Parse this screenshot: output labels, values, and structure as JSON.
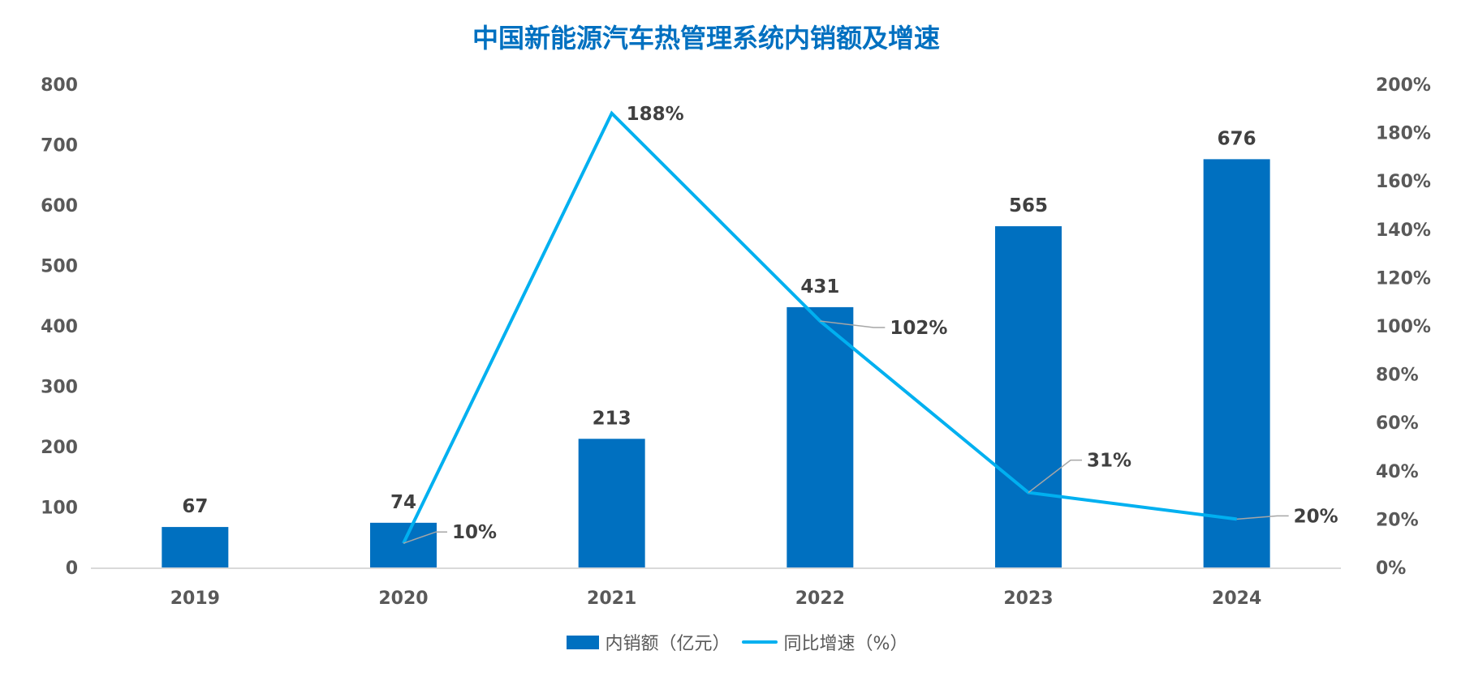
{
  "chart_data": {
    "type": "bar",
    "title": "中国新能源汽车热管理系统内销额及增速",
    "categories": [
      "2019",
      "2020",
      "2021",
      "2022",
      "2023",
      "2024"
    ],
    "series": [
      {
        "name": "内销额（亿元）",
        "type": "bar",
        "axis": "left",
        "values": [
          67,
          74,
          213,
          431,
          565,
          676
        ],
        "labels": [
          "67",
          "74",
          "213",
          "431",
          "565",
          "676"
        ],
        "color": "#0070C0"
      },
      {
        "name": "同比增速（%）",
        "type": "line",
        "axis": "right",
        "values": [
          null,
          10,
          188,
          102,
          31,
          20
        ],
        "labels": [
          "",
          "10%",
          "188%",
          "102%",
          "31%",
          "20%"
        ],
        "color": "#00B0F0"
      }
    ],
    "y_left": {
      "label": "",
      "ylim": [
        0,
        800
      ],
      "ticks": [
        "0",
        "100",
        "200",
        "300",
        "400",
        "500",
        "600",
        "700",
        "800"
      ]
    },
    "y_right": {
      "label": "",
      "ylim": [
        0,
        200
      ],
      "ticks": [
        "0%",
        "20%",
        "40%",
        "60%",
        "80%",
        "100%",
        "120%",
        "140%",
        "160%",
        "180%",
        "200%"
      ]
    },
    "xlabel": "",
    "grid": false,
    "legend": "bottom"
  },
  "legend": {
    "bar_label": "内销额（亿元）",
    "line_label": "同比增速（%）"
  }
}
